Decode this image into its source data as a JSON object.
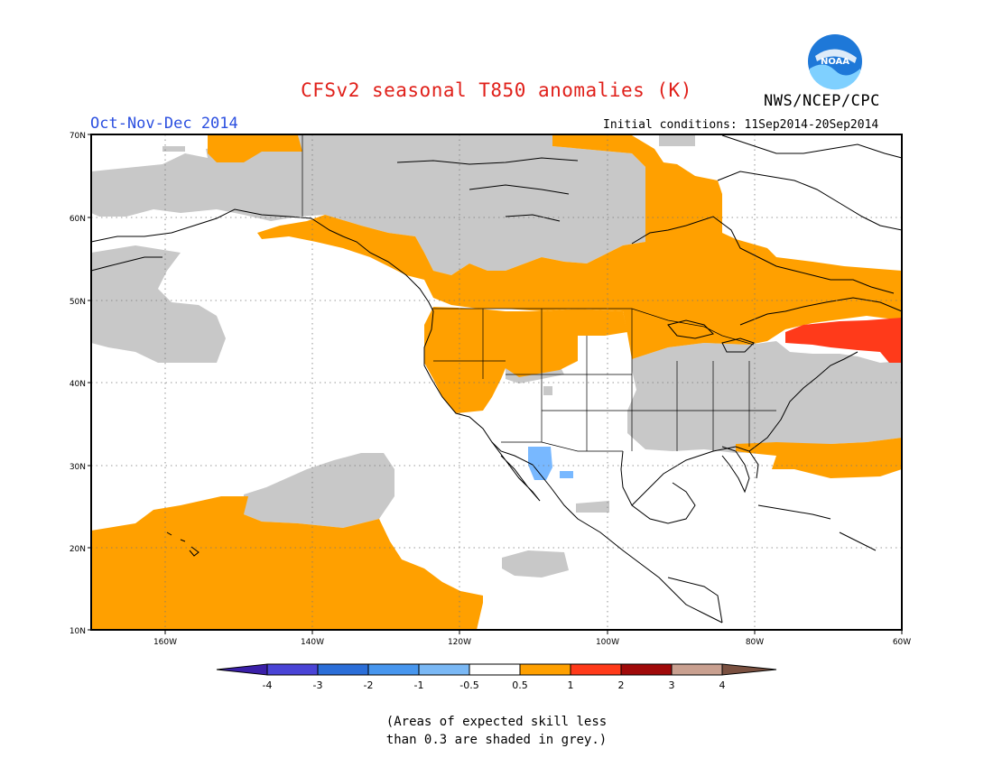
{
  "header": {
    "title": "CFSv2 seasonal T850 anomalies (K)",
    "agency": "NWS/NCEP/CPC",
    "logo_text": "NOAA",
    "season": "Oct-Nov-Dec 2014",
    "initial_conditions": "Initial conditions: 11Sep2014-20Sep2014"
  },
  "map": {
    "lat_labels": [
      "70N",
      "60N",
      "50N",
      "40N",
      "30N",
      "20N",
      "10N"
    ],
    "lon_labels": [
      "160W",
      "140W",
      "120W",
      "100W",
      "80W",
      "60W"
    ],
    "extent": {
      "lon": [
        -170,
        -60
      ],
      "lat": [
        10,
        70
      ]
    },
    "colors": {
      "grey": "#c8c8c8",
      "orange": "#ffa000",
      "red": "#ff3a1a",
      "light_blue": "#78b8ff",
      "coast": "#000000"
    }
  },
  "colorbar": {
    "labels": [
      "-4",
      "-3",
      "-2",
      "-1",
      "-0.5",
      "0.5",
      "1",
      "2",
      "3",
      "4"
    ],
    "colors": [
      "#3a1fa8",
      "#4a44d6",
      "#2b6ed8",
      "#4796ee",
      "#7ab8f5",
      "#ffffff",
      "#ffa000",
      "#ff3a1a",
      "#a00a0a",
      "#c9a090",
      "#7a5040"
    ]
  },
  "notes": {
    "line1": "(Areas of expected skill less",
    "line2": "than 0.3 are shaded in grey.)"
  }
}
